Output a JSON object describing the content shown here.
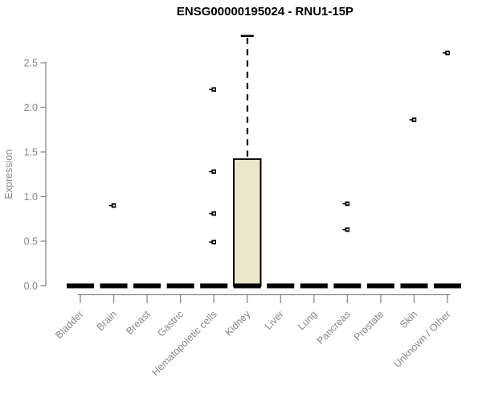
{
  "colors": {
    "background": "#ffffff",
    "title": "#000000",
    "axis": "#8a8a8a",
    "tick_label": "#878787",
    "box_fill": "#ece7cb",
    "box_border": "#000000",
    "median": "#000000",
    "outlier": "#000000"
  },
  "chart_data": {
    "type": "boxplot",
    "title": "ENSG00000195024 - RNU1-15P",
    "xlabel": "",
    "ylabel": "Expression",
    "ylim": [
      0,
      2.8
    ],
    "yticks": [
      "0.0",
      "0.5",
      "1.0",
      "1.5",
      "2.0",
      "2.5"
    ],
    "ytick_values": [
      0,
      0.5,
      1.0,
      1.5,
      2.0,
      2.5
    ],
    "grid": false,
    "legend": "none",
    "x_label_rotation_deg": 45,
    "categories": [
      "Bladder",
      "Brain",
      "Breast",
      "Gastric",
      "Hematopoietic cells",
      "Kidney",
      "Liver",
      "Lung",
      "Pancreas",
      "Prostate",
      "Skin",
      "Unknown / Other"
    ],
    "boxes": [
      {
        "category": "Bladder",
        "whisker_low": 0,
        "q1": 0,
        "median": 0,
        "q3": 0,
        "whisker_high": 0,
        "outliers": []
      },
      {
        "category": "Brain",
        "whisker_low": 0,
        "q1": 0,
        "median": 0,
        "q3": 0,
        "whisker_high": 0,
        "outliers": [
          0.9
        ]
      },
      {
        "category": "Breast",
        "whisker_low": 0,
        "q1": 0,
        "median": 0,
        "q3": 0,
        "whisker_high": 0,
        "outliers": []
      },
      {
        "category": "Gastric",
        "whisker_low": 0,
        "q1": 0,
        "median": 0,
        "q3": 0,
        "whisker_high": 0,
        "outliers": []
      },
      {
        "category": "Hematopoietic cells",
        "whisker_low": 0,
        "q1": 0,
        "median": 0,
        "q3": 0,
        "whisker_high": 0,
        "outliers": [
          2.2,
          1.28,
          0.81,
          0.49
        ]
      },
      {
        "category": "Kidney",
        "whisker_low": 0,
        "q1": 0,
        "median": 0,
        "q3": 1.42,
        "whisker_high": 2.8,
        "outliers": []
      },
      {
        "category": "Liver",
        "whisker_low": 0,
        "q1": 0,
        "median": 0,
        "q3": 0,
        "whisker_high": 0,
        "outliers": []
      },
      {
        "category": "Lung",
        "whisker_low": 0,
        "q1": 0,
        "median": 0,
        "q3": 0,
        "whisker_high": 0,
        "outliers": []
      },
      {
        "category": "Pancreas",
        "whisker_low": 0,
        "q1": 0,
        "median": 0,
        "q3": 0,
        "whisker_high": 0,
        "outliers": [
          0.92,
          0.63
        ]
      },
      {
        "category": "Prostate",
        "whisker_low": 0,
        "q1": 0,
        "median": 0,
        "q3": 0,
        "whisker_high": 0,
        "outliers": []
      },
      {
        "category": "Skin",
        "whisker_low": 0,
        "q1": 0,
        "median": 0,
        "q3": 0,
        "whisker_high": 0,
        "outliers": [
          1.86
        ]
      },
      {
        "category": "Unknown / Other",
        "whisker_low": 0,
        "q1": 0,
        "median": 0,
        "q3": 0,
        "whisker_high": 0,
        "outliers": [
          2.61
        ]
      }
    ]
  }
}
